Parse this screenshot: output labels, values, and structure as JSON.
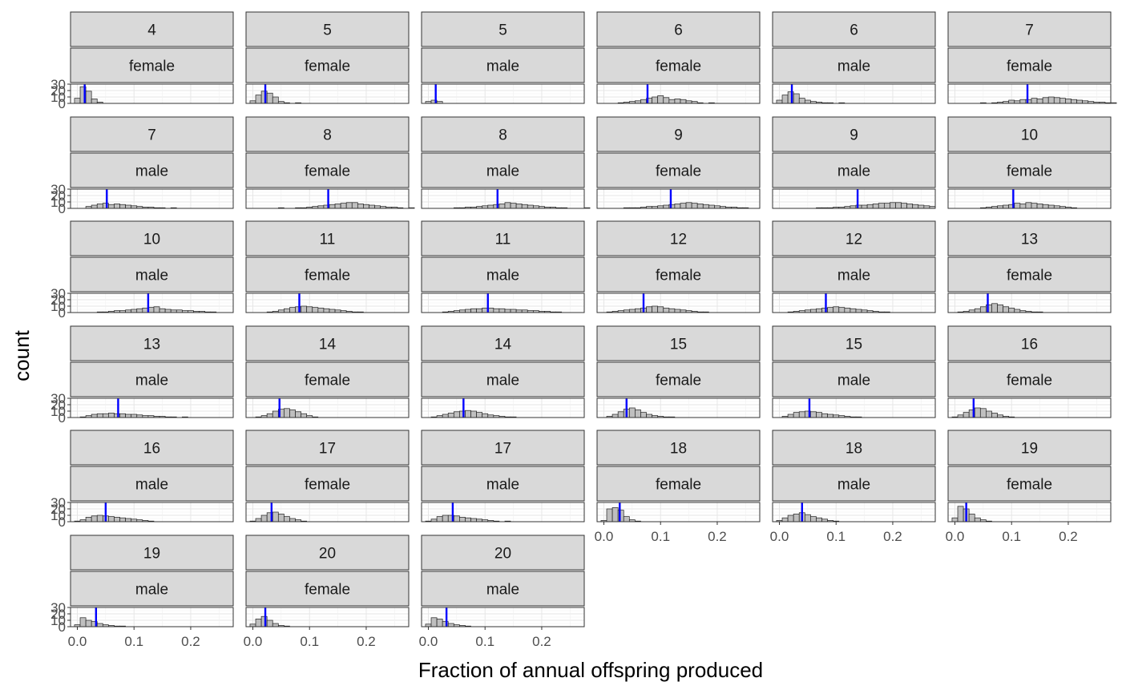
{
  "chart_data": {
    "type": "bar",
    "facet_layout": "wrap",
    "ncol": 6,
    "xlabel": "Fraction of annual offspring produced",
    "ylabel": "count",
    "xlim": [
      -0.012,
      0.275
    ],
    "ylim": [
      0,
      30
    ],
    "x_ticks": [
      0.0,
      0.1,
      0.2
    ],
    "x_tick_labels": [
      "0.0",
      "0.1",
      "0.2"
    ],
    "y_ticks": [
      0,
      10,
      20,
      30
    ],
    "y_tick_labels": [
      "0",
      "10",
      "20",
      "30"
    ],
    "bin_start": -0.005,
    "bin_width": 0.01,
    "bar_fill": "#bfbfbf",
    "bar_stroke": "#222222",
    "vline_color": "#0000ff",
    "grid": true,
    "panels": [
      {
        "age": "4",
        "sex": "female",
        "mean": 0.013,
        "counts": [
          8,
          26,
          19,
          7,
          2
        ]
      },
      {
        "age": "5",
        "sex": "female",
        "mean": 0.022,
        "counts": [
          4,
          13,
          19,
          16,
          10,
          3,
          1,
          0,
          1
        ]
      },
      {
        "age": "5",
        "sex": "male",
        "mean": 0.013,
        "counts": [
          3,
          5,
          3
        ]
      },
      {
        "age": "6",
        "sex": "female",
        "mean": 0.077,
        "counts": [
          0,
          0,
          0,
          1,
          2,
          3,
          4,
          6,
          8,
          10,
          12,
          9,
          6,
          7,
          6,
          4,
          3,
          1,
          0,
          1
        ]
      },
      {
        "age": "6",
        "sex": "male",
        "mean": 0.022,
        "counts": [
          5,
          13,
          18,
          15,
          8,
          5,
          3,
          2,
          1,
          1,
          0,
          1
        ]
      },
      {
        "age": "7",
        "sex": "female",
        "mean": 0.128,
        "counts": [
          0,
          0,
          0,
          0,
          0,
          1,
          0,
          1,
          2,
          3,
          5,
          4,
          6,
          6,
          8,
          7,
          9,
          10,
          9,
          8,
          7,
          6,
          5,
          4,
          3,
          2,
          2,
          1,
          1
        ]
      },
      {
        "age": "7",
        "sex": "male",
        "mean": 0.052,
        "counts": [
          0,
          0,
          3,
          5,
          7,
          8,
          6,
          7,
          6,
          5,
          4,
          3,
          2,
          2,
          1,
          1,
          0,
          1
        ]
      },
      {
        "age": "8",
        "sex": "female",
        "mean": 0.133,
        "counts": [
          0,
          0,
          0,
          0,
          0,
          1,
          0,
          0,
          1,
          1,
          2,
          3,
          4,
          5,
          6,
          7,
          8,
          9,
          9,
          7,
          6,
          5,
          4,
          3,
          2,
          2,
          1,
          0,
          1
        ]
      },
      {
        "age": "8",
        "sex": "male",
        "mean": 0.122,
        "counts": [
          0,
          0,
          0,
          0,
          0,
          1,
          1,
          2,
          2,
          3,
          4,
          5,
          6,
          7,
          9,
          8,
          7,
          6,
          5,
          4,
          3,
          2,
          2,
          1,
          1,
          0,
          0,
          0,
          1
        ]
      },
      {
        "age": "9",
        "sex": "female",
        "mean": 0.118,
        "counts": [
          0,
          0,
          0,
          0,
          1,
          1,
          1,
          2,
          3,
          3,
          4,
          5,
          6,
          7,
          8,
          9,
          8,
          7,
          6,
          5,
          4,
          3,
          2,
          2,
          1,
          1
        ]
      },
      {
        "age": "9",
        "sex": "male",
        "mean": 0.138,
        "counts": [
          0,
          0,
          0,
          0,
          0,
          0,
          0,
          1,
          1,
          1,
          2,
          2,
          3,
          4,
          5,
          5,
          6,
          7,
          8,
          8,
          9,
          9,
          8,
          7,
          6,
          5,
          4,
          3
        ]
      },
      {
        "age": "10",
        "sex": "female",
        "mean": 0.103,
        "counts": [
          0,
          0,
          0,
          0,
          0,
          1,
          2,
          3,
          4,
          5,
          6,
          8,
          7,
          9,
          8,
          7,
          6,
          5,
          4,
          3,
          2,
          1
        ]
      },
      {
        "age": "10",
        "sex": "male",
        "mean": 0.125,
        "counts": [
          0,
          0,
          0,
          0,
          1,
          1,
          2,
          3,
          3,
          4,
          5,
          6,
          7,
          8,
          9,
          6,
          5,
          4,
          4,
          3,
          3,
          2,
          2,
          1,
          1
        ]
      },
      {
        "age": "11",
        "sex": "female",
        "mean": 0.082,
        "counts": [
          0,
          0,
          0,
          1,
          2,
          4,
          6,
          8,
          9,
          10,
          9,
          8,
          7,
          6,
          5,
          4,
          3,
          2,
          1,
          1
        ]
      },
      {
        "age": "11",
        "sex": "male",
        "mean": 0.105,
        "counts": [
          0,
          0,
          0,
          1,
          2,
          3,
          4,
          5,
          6,
          6,
          7,
          7,
          6,
          6,
          5,
          5,
          4,
          4,
          3,
          3,
          2,
          2,
          1,
          1
        ]
      },
      {
        "age": "12",
        "sex": "female",
        "mean": 0.07,
        "counts": [
          0,
          1,
          2,
          3,
          4,
          5,
          6,
          7,
          9,
          10,
          9,
          7,
          6,
          5,
          4,
          3,
          2,
          1,
          1
        ]
      },
      {
        "age": "12",
        "sex": "male",
        "mean": 0.082,
        "counts": [
          0,
          0,
          1,
          2,
          3,
          4,
          5,
          6,
          7,
          8,
          9,
          8,
          7,
          6,
          5,
          4,
          3,
          2,
          1,
          1
        ]
      },
      {
        "age": "13",
        "sex": "female",
        "mean": 0.058,
        "counts": [
          0,
          1,
          2,
          4,
          6,
          9,
          12,
          14,
          12,
          9,
          7,
          5,
          3,
          2,
          1,
          1
        ]
      },
      {
        "age": "13",
        "sex": "male",
        "mean": 0.072,
        "counts": [
          0,
          1,
          3,
          5,
          6,
          6,
          7,
          6,
          6,
          5,
          5,
          4,
          3,
          3,
          2,
          2,
          1,
          1,
          0,
          1
        ]
      },
      {
        "age": "14",
        "sex": "female",
        "mean": 0.047,
        "counts": [
          0,
          1,
          3,
          6,
          10,
          13,
          14,
          12,
          9,
          6,
          3,
          1
        ]
      },
      {
        "age": "14",
        "sex": "male",
        "mean": 0.062,
        "counts": [
          0,
          1,
          3,
          5,
          7,
          9,
          10,
          11,
          10,
          8,
          6,
          4,
          3,
          2,
          1,
          1
        ]
      },
      {
        "age": "15",
        "sex": "female",
        "mean": 0.04,
        "counts": [
          0,
          2,
          5,
          9,
          13,
          15,
          12,
          8,
          5,
          3,
          2,
          1,
          1
        ]
      },
      {
        "age": "15",
        "sex": "male",
        "mean": 0.053,
        "counts": [
          0,
          2,
          5,
          8,
          9,
          10,
          9,
          8,
          6,
          5,
          4,
          3,
          2,
          1,
          1
        ]
      },
      {
        "age": "16",
        "sex": "female",
        "mean": 0.033,
        "counts": [
          1,
          4,
          8,
          12,
          15,
          14,
          10,
          7,
          4,
          2,
          1
        ]
      },
      {
        "age": "16",
        "sex": "male",
        "mean": 0.05,
        "counts": [
          1,
          3,
          7,
          9,
          10,
          9,
          8,
          7,
          6,
          5,
          4,
          3,
          2,
          1
        ]
      },
      {
        "age": "17",
        "sex": "female",
        "mean": 0.033,
        "counts": [
          1,
          5,
          10,
          14,
          15,
          12,
          8,
          5,
          3,
          1
        ]
      },
      {
        "age": "17",
        "sex": "male",
        "mean": 0.043,
        "counts": [
          1,
          4,
          8,
          10,
          10,
          9,
          7,
          6,
          5,
          4,
          3,
          2,
          1,
          0,
          1
        ]
      },
      {
        "age": "18",
        "sex": "female",
        "mean": 0.028,
        "counts": [
          2,
          20,
          22,
          18,
          8,
          3,
          1
        ]
      },
      {
        "age": "18",
        "sex": "male",
        "mean": 0.04,
        "counts": [
          2,
          6,
          10,
          12,
          14,
          11,
          8,
          6,
          4,
          2,
          1
        ]
      },
      {
        "age": "19",
        "sex": "female",
        "mean": 0.02,
        "counts": [
          6,
          24,
          20,
          12,
          6,
          3,
          1
        ]
      },
      {
        "age": "19",
        "sex": "male",
        "mean": 0.033,
        "counts": [
          3,
          14,
          10,
          8,
          5,
          3,
          2,
          1,
          1
        ]
      },
      {
        "age": "20",
        "sex": "female",
        "mean": 0.022,
        "counts": [
          4,
          12,
          16,
          10,
          5,
          2,
          1
        ]
      },
      {
        "age": "20",
        "sex": "male",
        "mean": 0.032,
        "counts": [
          4,
          14,
          12,
          8,
          5,
          3,
          2,
          1
        ]
      }
    ]
  }
}
